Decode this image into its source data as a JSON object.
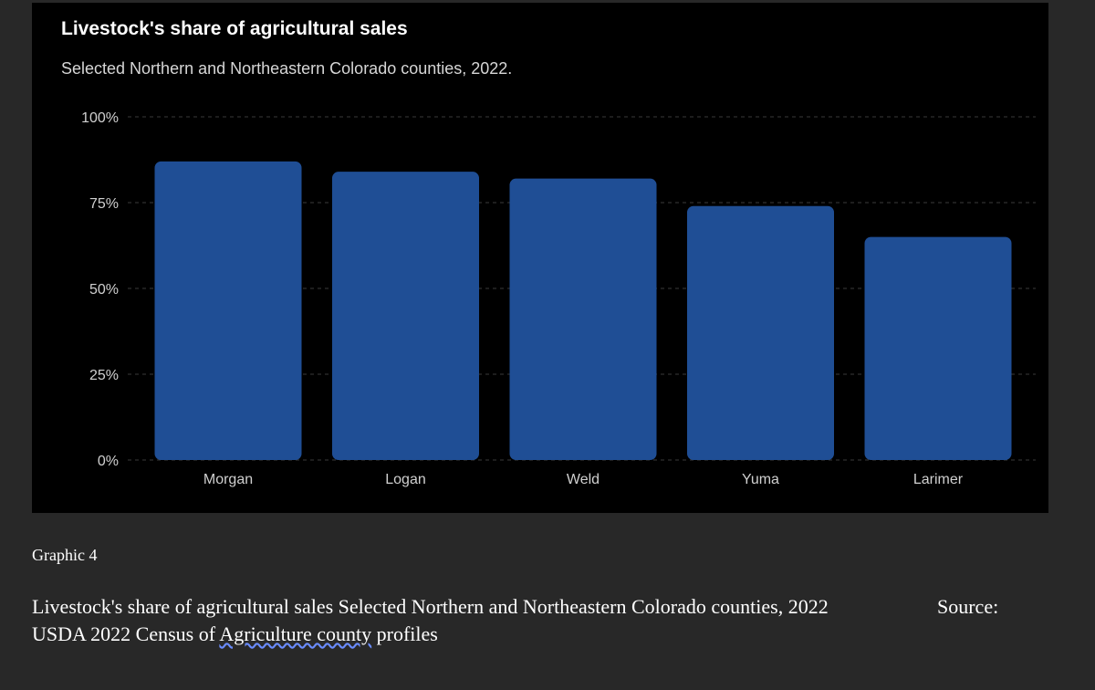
{
  "chart_data": {
    "type": "bar",
    "title": "Livestock's share of agricultural sales",
    "subtitle": "Selected Northern and Northeastern Colorado counties, 2022.",
    "categories": [
      "Morgan",
      "Logan",
      "Weld",
      "Yuma",
      "Larimer"
    ],
    "values": [
      87,
      84,
      82,
      74,
      65
    ],
    "unit": "%",
    "ylim": [
      0,
      100
    ],
    "yticks": [
      0,
      25,
      50,
      75,
      100
    ],
    "ytick_labels": [
      "0%",
      "25%",
      "50%",
      "75%",
      "100%"
    ],
    "xlabel": "",
    "ylabel": "",
    "grid": true,
    "bar_color": "#1f4e95",
    "background": "#000000"
  },
  "caption": {
    "graphic_label": "Graphic 4",
    "line1": "Livestock's share of agricultural sales Selected Northern and Northeastern Colorado counties, 2022",
    "source_label": "Source:",
    "line2_prefix": "USDA 2022 Census of ",
    "line2_underlined": "Agriculture county",
    "line2_suffix": " profiles"
  },
  "colors": {
    "page_background": "#282828",
    "chart_background": "#000000",
    "gridline": "#3a3a3a",
    "text_primary": "#ffffff",
    "text_secondary": "#d0d0d0"
  }
}
